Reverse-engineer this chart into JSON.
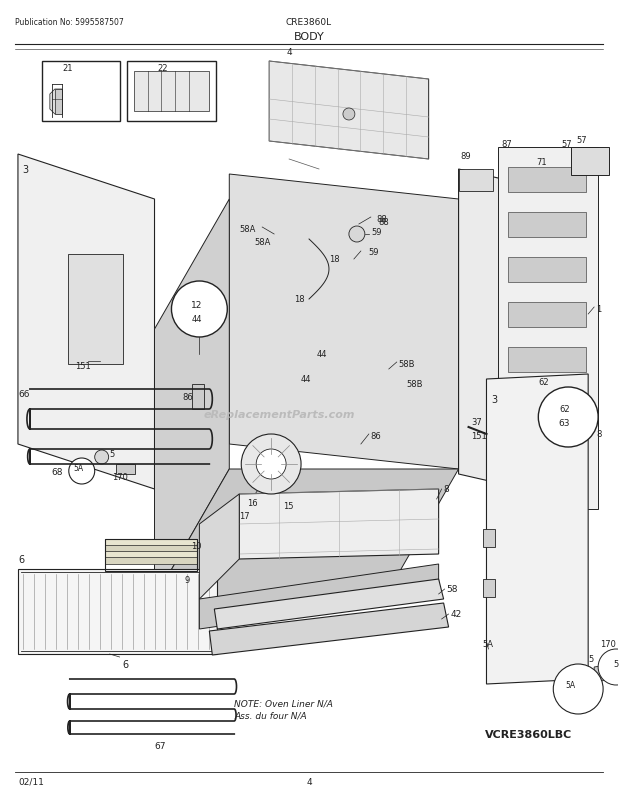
{
  "title": "BODY",
  "pub_no": "Publication No: 5995587507",
  "model": "CRE3860L",
  "date": "02/11",
  "page": "4",
  "vcre": "VCRE3860LBC",
  "note_line1": "NOTE: Oven Liner N/A",
  "note_line2": "Ass. du four N/A",
  "bg_color": "#ffffff",
  "lc": "#222222",
  "wm_text": "eReplacementParts.com",
  "wm_color": "#bbbbbb"
}
